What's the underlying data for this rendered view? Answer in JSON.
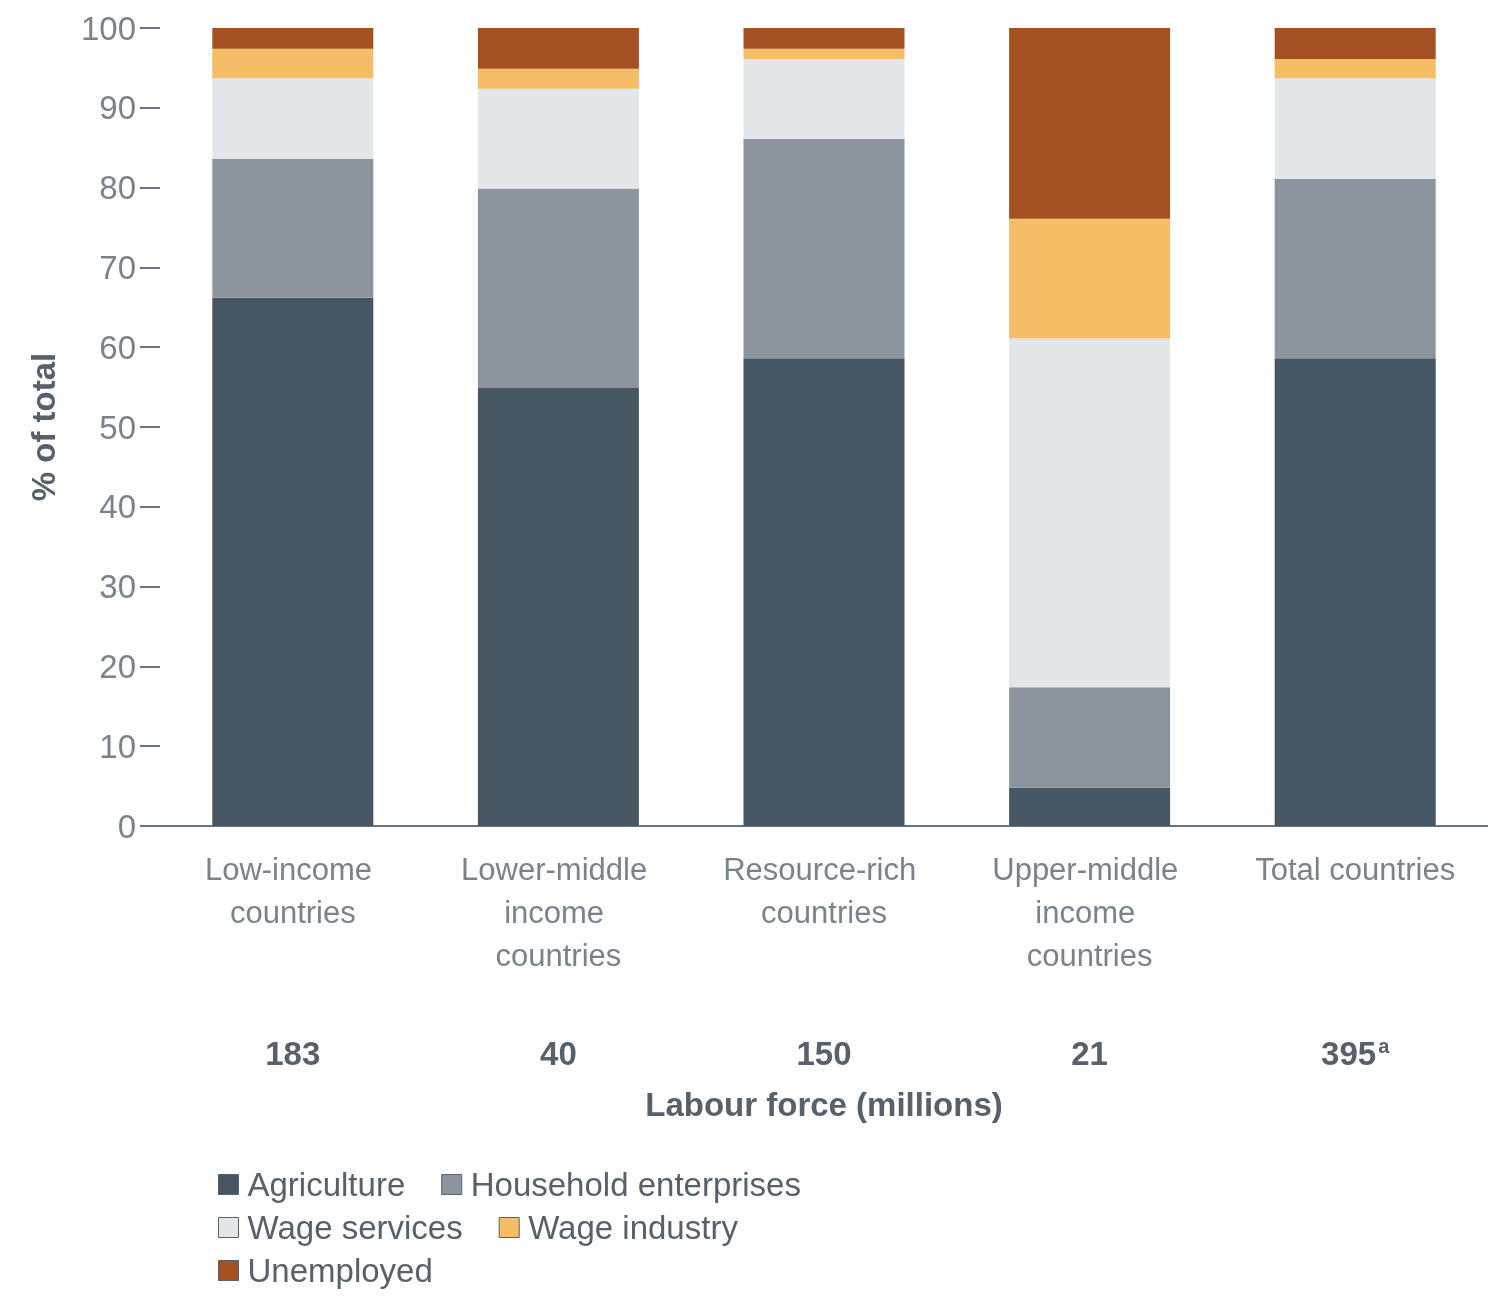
{
  "chart_data": {
    "type": "bar",
    "stacked": true,
    "ylabel": "% of total",
    "xlabel": "Labour force (millions)",
    "categories": [
      "Low-income countries",
      "Lower-middle income countries",
      "Resource-rich countries",
      "Upper-middle income countries",
      "Total countries"
    ],
    "series": [
      {
        "name": "Agriculture",
        "color": "#465763",
        "values": [
          66.2,
          54.9,
          58.6,
          4.8,
          58.6
        ]
      },
      {
        "name": "Household enterprises",
        "color": "#8c959e",
        "values": [
          17.4,
          25.0,
          27.5,
          12.6,
          22.5
        ]
      },
      {
        "name": "Wage services",
        "color": "#e3e7ea",
        "values": [
          10.1,
          12.5,
          10.0,
          43.7,
          12.6
        ]
      },
      {
        "name": "Wage industry",
        "color": "#f4bd66",
        "values": [
          3.7,
          2.5,
          1.3,
          15.0,
          2.4
        ]
      },
      {
        "name": "Unemployed",
        "color": "#a45022",
        "values": [
          2.6,
          5.1,
          2.6,
          23.9,
          3.9
        ]
      }
    ],
    "ylim": [
      0,
      100
    ],
    "yticks": [
      0,
      10,
      20,
      30,
      40,
      50,
      60,
      70,
      80,
      90,
      100
    ],
    "grid": false,
    "legend": "bottom left",
    "annotations": [
      "183",
      "40",
      "150",
      "21",
      "395$^{a}$"
    ]
  }
}
